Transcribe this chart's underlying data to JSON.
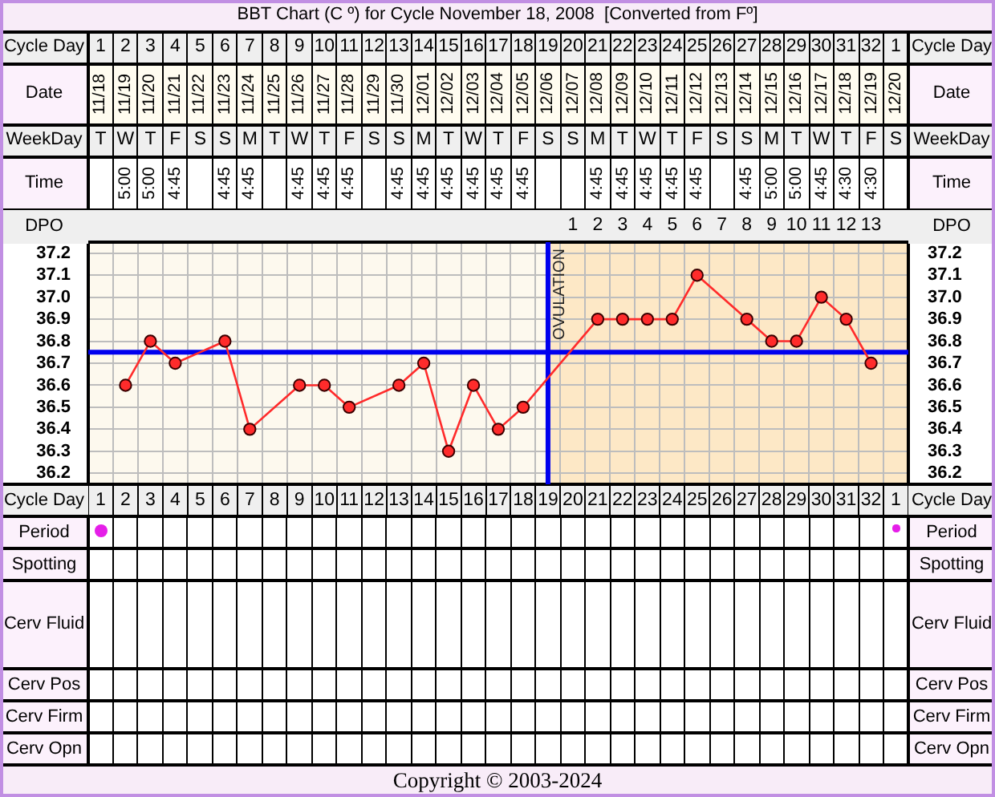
{
  "chart_data": [
    {
      "type": "heatmap",
      "title": "BBT Chart (C º) for Cycle November 18, 2008  [Converted from Fº]",
      "xlabel": "Cycle Day",
      "categories": [
        "1",
        "2",
        "3",
        "4",
        "5",
        "6",
        "7",
        "8",
        "9",
        "10",
        "11",
        "12",
        "13",
        "14",
        "15",
        "16",
        "17",
        "18",
        "19",
        "20",
        "21",
        "22",
        "23",
        "24",
        "25",
        "26",
        "27",
        "28",
        "29",
        "30",
        "31",
        "32",
        "1"
      ],
      "y_categories": [
        "Date",
        "WeekDay",
        "Time"
      ],
      "y2_categories": [
        "Date",
        "WeekDay",
        "Time"
      ],
      "cells": [
        [
          null,
          null,
          null,
          null,
          null,
          null,
          null,
          null,
          null,
          null,
          null,
          null,
          null,
          null,
          null,
          null,
          null,
          null,
          null,
          null,
          null,
          null,
          null,
          null,
          null,
          null,
          null,
          null,
          null,
          null,
          null,
          null,
          null
        ],
        [
          null,
          null,
          null,
          null,
          null,
          null,
          null,
          null,
          null,
          null,
          null,
          null,
          null,
          null,
          null,
          null,
          null,
          null,
          null,
          null,
          null,
          null,
          null,
          null,
          null,
          null,
          null,
          null,
          null,
          null,
          null,
          null,
          null
        ],
        [
          null,
          null,
          null,
          null,
          null,
          null,
          null,
          null,
          null,
          null,
          null,
          null,
          null,
          null,
          null,
          null,
          null,
          null,
          null,
          null,
          null,
          null,
          null,
          null,
          null,
          null,
          null,
          null,
          null,
          null,
          null,
          null,
          null
        ]
      ],
      "cell_labels": [
        [
          "11/18",
          "11/19",
          "11/20",
          "11/21",
          "11/22",
          "11/23",
          "11/24",
          "11/25",
          "11/26",
          "11/27",
          "11/28",
          "11/29",
          "11/30",
          "12/01",
          "12/02",
          "12/03",
          "12/04",
          "12/05",
          "12/06",
          "12/07",
          "12/08",
          "12/09",
          "12/10",
          "12/11",
          "12/12",
          "12/13",
          "12/14",
          "12/15",
          "12/16",
          "12/17",
          "12/18",
          "12/19",
          "12/20"
        ],
        [
          "T",
          "W",
          "T",
          "F",
          "S",
          "S",
          "M",
          "T",
          "W",
          "T",
          "F",
          "S",
          "S",
          "M",
          "T",
          "W",
          "T",
          "F",
          "S",
          "S",
          "M",
          "T",
          "W",
          "T",
          "F",
          "S",
          "S",
          "M",
          "T",
          "W",
          "T",
          "F",
          "S"
        ],
        [
          null,
          "5:00",
          "5:00",
          "4:45",
          null,
          "4:45",
          "4:45",
          null,
          "4:45",
          "4:45",
          "4:45",
          null,
          "4:45",
          "4:45",
          "4:45",
          "4:45",
          "4:45",
          "4:45",
          null,
          null,
          "4:45",
          "4:45",
          "4:45",
          "4:45",
          "4:45",
          null,
          "4:45",
          "5:00",
          "5:00",
          "4:45",
          "4:30",
          "4:30",
          null
        ]
      ],
      "grid": true
    },
    {
      "type": "line",
      "xlabel": "Cycle Day",
      "x2label": "DPO",
      "categories": [
        "1",
        "2",
        "3",
        "4",
        "5",
        "6",
        "7",
        "8",
        "9",
        "10",
        "11",
        "12",
        "13",
        "14",
        "15",
        "16",
        "17",
        "18",
        "19",
        "20",
        "21",
        "22",
        "23",
        "24",
        "25",
        "26",
        "27",
        "28",
        "29",
        "30",
        "31",
        "32",
        "1"
      ],
      "series": [
        {
          "color": "#ff2b2b",
          "values": [
            null,
            36.6,
            36.8,
            36.7,
            null,
            36.8,
            36.4,
            null,
            36.6,
            36.6,
            36.5,
            null,
            36.6,
            36.7,
            36.3,
            36.6,
            36.4,
            36.5,
            null,
            null,
            36.9,
            36.9,
            36.9,
            36.9,
            37.1,
            null,
            36.9,
            36.8,
            36.8,
            37.0,
            36.9,
            36.7,
            null
          ]
        }
      ],
      "x2lim": [
        -18.5,
        14.5
      ],
      "x2ticks": [
        1,
        2,
        3,
        4,
        5,
        6,
        7,
        8,
        9,
        10,
        11,
        12,
        13
      ],
      "ylim": [
        36.15,
        37.25
      ],
      "yticks": [
        36.2,
        36.3,
        36.4,
        36.5,
        36.6,
        36.7,
        36.8,
        36.9,
        {
          "value": 37,
          "label": "37.0"
        },
        37.1,
        37.2
      ],
      "y2lim": [
        36.15,
        37.25
      ],
      "y2ticks": [
        36.2,
        36.3,
        36.4,
        36.5,
        36.6,
        36.7,
        36.8,
        36.9,
        {
          "value": 37,
          "label": "37.0"
        },
        37.1,
        37.2
      ],
      "grid": true,
      "marker": "circle",
      "line_style": "solid",
      "ref_lines": [
        {
          "axis": "y",
          "value": 36.75,
          "color": "#0000ee"
        },
        {
          "axis": "x",
          "value": "19",
          "label": "OVULATION",
          "color": "#0000ee"
        }
      ],
      "bands": [
        {
          "axis": "x2",
          "from": 0,
          "to": 14.5,
          "color": "#fde8c6"
        }
      ]
    },
    {
      "type": "heatmap",
      "categories": [
        null,
        null,
        null,
        null,
        null,
        null,
        null,
        null,
        null,
        null,
        null,
        null,
        null,
        null,
        null,
        null,
        null,
        null,
        null,
        null,
        null,
        null,
        null,
        null,
        null,
        null,
        null,
        null,
        null,
        null,
        null,
        null,
        null
      ],
      "y_categories": [
        "Period",
        "Spotting",
        "Cerv Fluid",
        "Cerv Pos",
        "Cerv Firm",
        "Cerv Opn"
      ],
      "y2_categories": [
        "Period",
        "Spotting",
        "Cerv Fluid",
        "Cerv Pos",
        "Cerv Firm",
        "Cerv Opn"
      ],
      "cells": [
        [
          null,
          null,
          null,
          null,
          null,
          null,
          null,
          null,
          null,
          null,
          null,
          null,
          null,
          null,
          null,
          null,
          null,
          null,
          null,
          null,
          null,
          null,
          null,
          null,
          null,
          null,
          null,
          null,
          null,
          null,
          null,
          null,
          null
        ],
        [
          null,
          null,
          null,
          null,
          null,
          null,
          null,
          null,
          null,
          null,
          null,
          null,
          null,
          null,
          null,
          null,
          null,
          null,
          null,
          null,
          null,
          null,
          null,
          null,
          null,
          null,
          null,
          null,
          null,
          null,
          null,
          null,
          null
        ],
        [
          null,
          null,
          null,
          null,
          null,
          null,
          null,
          null,
          null,
          null,
          null,
          null,
          null,
          null,
          null,
          null,
          null,
          null,
          null,
          null,
          null,
          null,
          null,
          null,
          null,
          null,
          null,
          null,
          null,
          null,
          null,
          null,
          null
        ],
        [
          null,
          null,
          null,
          null,
          null,
          null,
          null,
          null,
          null,
          null,
          null,
          null,
          null,
          null,
          null,
          null,
          null,
          null,
          null,
          null,
          null,
          null,
          null,
          null,
          null,
          null,
          null,
          null,
          null,
          null,
          null,
          null,
          null
        ],
        [
          null,
          null,
          null,
          null,
          null,
          null,
          null,
          null,
          null,
          null,
          null,
          null,
          null,
          null,
          null,
          null,
          null,
          null,
          null,
          null,
          null,
          null,
          null,
          null,
          null,
          null,
          null,
          null,
          null,
          null,
          null,
          null,
          null
        ],
        [
          null,
          null,
          null,
          null,
          null,
          null,
          null,
          null,
          null,
          null,
          null,
          null,
          null,
          null,
          null,
          null,
          null,
          null,
          null,
          null,
          null,
          null,
          null,
          null,
          null,
          null,
          null,
          null,
          null,
          null,
          null,
          null,
          null
        ]
      ],
      "grid": true,
      "annotations": [
        "Copyright © 2003-2024"
      ]
    }
  ]
}
